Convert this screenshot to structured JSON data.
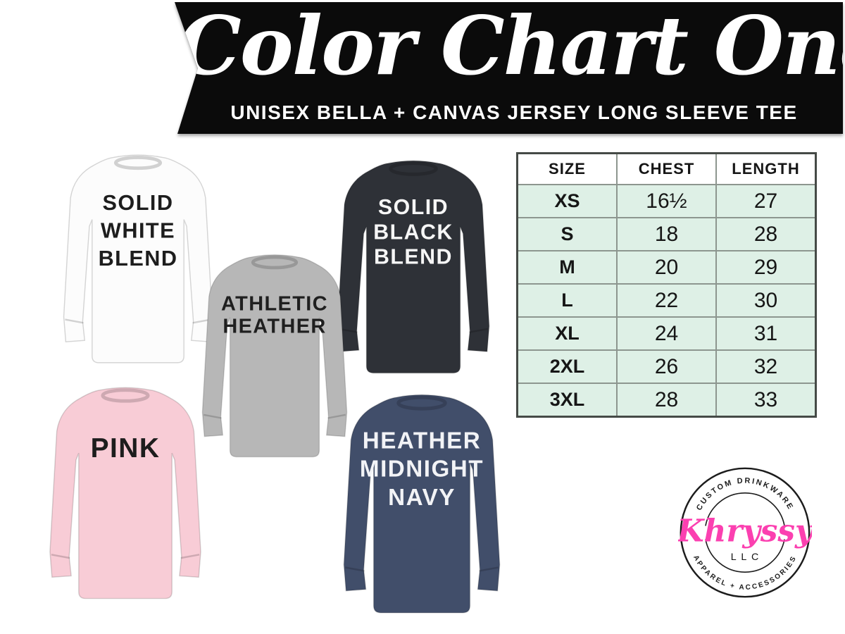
{
  "banner": {
    "title": "Color Chart One",
    "subtitle": "UNISEX BELLA + CANVAS JERSEY LONG SLEEVE TEE",
    "bg_color": "#0b0b0b",
    "text_color": "#ffffff"
  },
  "size_table": {
    "columns": [
      "SIZE",
      "CHEST",
      "LENGTH"
    ],
    "rows": [
      {
        "size": "XS",
        "chest": "16½",
        "length": "27"
      },
      {
        "size": "S",
        "chest": "18",
        "length": "28"
      },
      {
        "size": "M",
        "chest": "20",
        "length": "29"
      },
      {
        "size": "L",
        "chest": "22",
        "length": "30"
      },
      {
        "size": "XL",
        "chest": "24",
        "length": "31"
      },
      {
        "size": "2XL",
        "chest": "26",
        "length": "32"
      },
      {
        "size": "3XL",
        "chest": "28",
        "length": "33"
      }
    ],
    "row_bg_color": "#def0e6",
    "header_bg_color": "#ffffff",
    "border_color": "#8d968f"
  },
  "shirts": [
    {
      "name": "solid-white-blend",
      "lines": [
        "SOLID",
        "WHITE",
        "BLEND"
      ],
      "body_color": "#fcfcfc",
      "text_color": "#1d1d1d"
    },
    {
      "name": "athletic-heather",
      "lines": [
        "ATHLETIC",
        "HEATHER"
      ],
      "body_color": "#b7b7b7",
      "text_color": "#1f1f1f"
    },
    {
      "name": "solid-black-blend",
      "lines": [
        "SOLID",
        "BLACK",
        "BLEND"
      ],
      "body_color": "#2e3137",
      "text_color": "#f6f6f6"
    },
    {
      "name": "pink",
      "lines": [
        "PINK"
      ],
      "body_color": "#f8ccd6",
      "text_color": "#1d1d1d"
    },
    {
      "name": "heather-midnight-navy",
      "lines": [
        "HEATHER",
        "MIDNIGHT",
        "NAVY"
      ],
      "body_color": "#414e6a",
      "text_color": "#f2f3f6"
    }
  ],
  "logo": {
    "top_text": "CUSTOM DRINKWARE",
    "bottom_text": "APPAREL + ACCESSORIES",
    "brand": "Khryssy",
    "suffix": "LLC",
    "brand_color": "#fb40b0",
    "ring_color": "#1c1c1c"
  }
}
